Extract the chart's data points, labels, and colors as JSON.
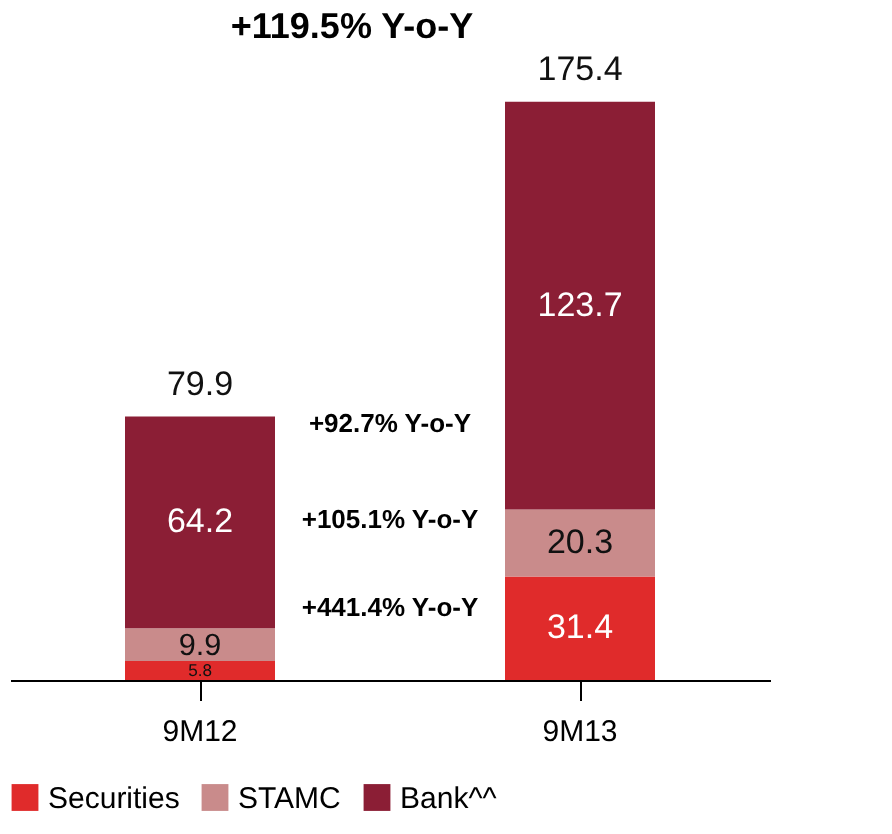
{
  "chart_data": {
    "type": "bar",
    "stacked": true,
    "data_labels": true,
    "legend": "bottom",
    "grid": false,
    "tick_labels": "x",
    "categories": [
      "9M12",
      "9M13"
    ],
    "series": [
      {
        "name": "Securities",
        "color": "#e02b2b",
        "values": [
          5.8,
          31.4
        ]
      },
      {
        "name": "STAMC",
        "color": "#c98b8b",
        "values": [
          9.9,
          20.3
        ]
      },
      {
        "name": "Bank^^",
        "color": "#8b1e35",
        "values": [
          64.2,
          123.7
        ]
      }
    ],
    "totals": [
      "79.9",
      "175.4"
    ],
    "annotations": [
      "+119.5% Y-o-Y",
      "+92.7% Y-o-Y",
      "+105.1% Y-o-Y",
      "+441.4% Y-o-Y"
    ]
  }
}
